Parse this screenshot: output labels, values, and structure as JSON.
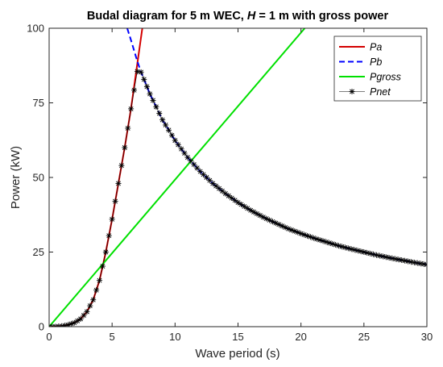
{
  "chart_data": {
    "type": "line",
    "title": {
      "prefix": "Budal diagram for 5 m WEC,  ",
      "var": "H",
      "suffix": " = 1 m with gross power"
    },
    "xlabel": "Wave period (s)",
    "ylabel": "Power (kW)",
    "xlim": [
      0,
      30
    ],
    "ylim": [
      0,
      100
    ],
    "xticks": [
      0,
      5,
      10,
      15,
      20,
      25,
      30
    ],
    "yticks": [
      0,
      25,
      50,
      75,
      100
    ],
    "grid": false,
    "legend_position": "top-right",
    "series": [
      {
        "name": "Pa",
        "style": "solid",
        "color": "#d40000",
        "points": [
          [
            0,
            0
          ],
          [
            0.5,
            0.03
          ],
          [
            1,
            0.2
          ],
          [
            1.5,
            0.6
          ],
          [
            2,
            1.3
          ],
          [
            2.5,
            2.6
          ],
          [
            3,
            5
          ],
          [
            3.5,
            9
          ],
          [
            4,
            15.5
          ],
          [
            4.5,
            25
          ],
          [
            5,
            36
          ],
          [
            5.5,
            48
          ],
          [
            6,
            60
          ],
          [
            6.5,
            73
          ],
          [
            7,
            88
          ],
          [
            7.5,
            103
          ]
        ]
      },
      {
        "name": "Pb",
        "style": "dashed",
        "color": "#0000ff",
        "points": [
          [
            6.2,
            100
          ],
          [
            6.5,
            96
          ],
          [
            7,
            89
          ],
          [
            7.3,
            85.3
          ],
          [
            8,
            78
          ],
          [
            9,
            69.3
          ],
          [
            10,
            62.4
          ],
          [
            11,
            56.7
          ],
          [
            12,
            52
          ],
          [
            13,
            48
          ],
          [
            14,
            44.6
          ],
          [
            15,
            41.6
          ],
          [
            16,
            39
          ],
          [
            17,
            36.7
          ],
          [
            18,
            34.7
          ],
          [
            19,
            32.8
          ],
          [
            20,
            31.2
          ],
          [
            21,
            29.7
          ],
          [
            22,
            28.4
          ],
          [
            23,
            27.1
          ],
          [
            24,
            26
          ],
          [
            25,
            25
          ],
          [
            26,
            24
          ],
          [
            27,
            23.1
          ],
          [
            28,
            22.3
          ],
          [
            29,
            21.5
          ],
          [
            30,
            20.8
          ]
        ]
      },
      {
        "name": "Pgross",
        "style": "solid",
        "color": "#00e000",
        "points": [
          [
            0,
            0
          ],
          [
            20.3,
            100
          ]
        ]
      },
      {
        "name": "Pnet",
        "style": "markers",
        "color": "#000000",
        "points": [
          [
            0,
            0
          ],
          [
            0.5,
            0.03
          ],
          [
            1,
            0.2
          ],
          [
            1.5,
            0.6
          ],
          [
            2,
            1.3
          ],
          [
            2.5,
            2.6
          ],
          [
            3,
            5
          ],
          [
            3.5,
            9
          ],
          [
            4,
            15.5
          ],
          [
            4.5,
            25
          ],
          [
            5,
            36
          ],
          [
            5.5,
            48
          ],
          [
            6,
            60
          ],
          [
            6.5,
            73
          ],
          [
            7,
            85.5
          ],
          [
            7.3,
            85.3
          ],
          [
            8,
            78
          ],
          [
            9,
            69.3
          ],
          [
            10,
            62.4
          ],
          [
            11,
            56.7
          ],
          [
            12,
            52
          ],
          [
            13,
            48
          ],
          [
            14,
            44.6
          ],
          [
            15,
            41.6
          ],
          [
            16,
            39
          ],
          [
            17,
            36.7
          ],
          [
            18,
            34.7
          ],
          [
            19,
            32.8
          ],
          [
            20,
            31.2
          ],
          [
            21,
            29.7
          ],
          [
            22,
            28.4
          ],
          [
            23,
            27.1
          ],
          [
            24,
            26
          ],
          [
            25,
            25
          ],
          [
            26,
            24
          ],
          [
            27,
            23.1
          ],
          [
            28,
            22.3
          ],
          [
            29,
            21.5
          ],
          [
            30,
            20.8
          ]
        ]
      }
    ]
  }
}
